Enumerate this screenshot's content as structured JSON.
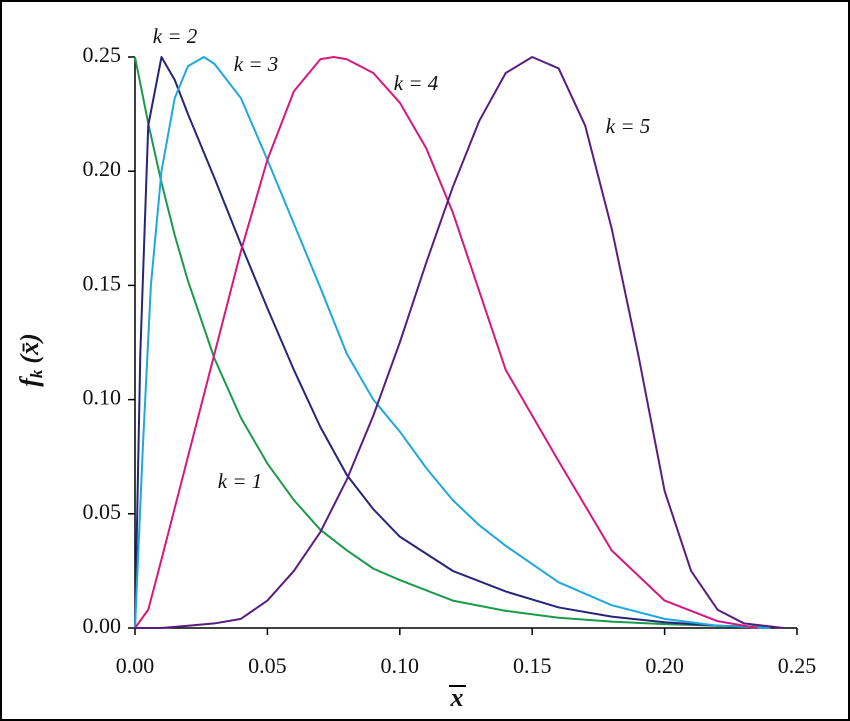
{
  "chart_data": {
    "type": "line",
    "ylabel": [
      "f",
      "k",
      "(x̄)"
    ],
    "xlabel": "x",
    "xlim": [
      0,
      0.25
    ],
    "ylim": [
      0,
      0.25
    ],
    "xticks": [
      {
        "value": 0,
        "label": "0.00"
      },
      {
        "value": 0.05,
        "label": "0.05"
      },
      {
        "value": 0.1,
        "label": "0.10"
      },
      {
        "value": 0.15,
        "label": "0.15"
      },
      {
        "value": 0.2,
        "label": "0.20"
      },
      {
        "value": 0.25,
        "label": "0.25"
      }
    ],
    "yticks": [
      {
        "value": 0,
        "label": "0.00"
      },
      {
        "value": 0.05,
        "label": "0.05"
      },
      {
        "value": 0.1,
        "label": "0.10"
      },
      {
        "value": 0.15,
        "label": "0.15"
      },
      {
        "value": 0.2,
        "label": "0.20"
      },
      {
        "value": 0.25,
        "label": "0.25"
      }
    ],
    "series": [
      {
        "name": "k = 1",
        "color": "#1b9a4a",
        "x": [
          0,
          0.005,
          0.01,
          0.015,
          0.02,
          0.03,
          0.04,
          0.05,
          0.06,
          0.07,
          0.08,
          0.09,
          0.1,
          0.12,
          0.14,
          0.16,
          0.18,
          0.2,
          0.22,
          0.24
        ],
        "values": [
          0.25,
          0.221,
          0.195,
          0.172,
          0.152,
          0.118,
          0.092,
          0.072,
          0.056,
          0.043,
          0.034,
          0.026,
          0.021,
          0.012,
          0.0075,
          0.0045,
          0.0028,
          0.0017,
          0.001,
          0.0005
        ]
      },
      {
        "name": "k = 2",
        "color": "#27257a",
        "x": [
          0,
          0.002,
          0.005,
          0.01,
          0.015,
          0.02,
          0.03,
          0.04,
          0.05,
          0.06,
          0.07,
          0.08,
          0.09,
          0.1,
          0.12,
          0.14,
          0.16,
          0.18,
          0.2,
          0.22,
          0.24
        ],
        "values": [
          0,
          0.12,
          0.22,
          0.25,
          0.24,
          0.225,
          0.197,
          0.168,
          0.14,
          0.113,
          0.088,
          0.067,
          0.052,
          0.04,
          0.025,
          0.016,
          0.009,
          0.005,
          0.0025,
          0.001,
          0
        ]
      },
      {
        "name": "k = 3",
        "color": "#1ea9dc",
        "x": [
          0,
          0.003,
          0.006,
          0.01,
          0.015,
          0.02,
          0.026,
          0.03,
          0.04,
          0.05,
          0.06,
          0.07,
          0.08,
          0.09,
          0.1,
          0.11,
          0.12,
          0.13,
          0.14,
          0.15,
          0.16,
          0.18,
          0.2,
          0.22,
          0.24
        ],
        "values": [
          0,
          0.08,
          0.15,
          0.2,
          0.232,
          0.246,
          0.25,
          0.247,
          0.232,
          0.205,
          0.177,
          0.149,
          0.12,
          0.1,
          0.086,
          0.07,
          0.056,
          0.045,
          0.036,
          0.028,
          0.02,
          0.01,
          0.004,
          0.001,
          0
        ]
      },
      {
        "name": "k = 4",
        "color": "#d6177f",
        "x": [
          0,
          0.005,
          0.01,
          0.02,
          0.03,
          0.04,
          0.05,
          0.06,
          0.07,
          0.075,
          0.08,
          0.09,
          0.1,
          0.11,
          0.12,
          0.14,
          0.16,
          0.18,
          0.2,
          0.22,
          0.235
        ],
        "values": [
          0,
          0.008,
          0.03,
          0.075,
          0.12,
          0.165,
          0.205,
          0.235,
          0.249,
          0.25,
          0.249,
          0.243,
          0.23,
          0.21,
          0.182,
          0.113,
          0.073,
          0.034,
          0.012,
          0.003,
          0
        ]
      },
      {
        "name": "k = 5",
        "color": "#5b1c80",
        "x": [
          0,
          0.01,
          0.02,
          0.03,
          0.04,
          0.05,
          0.06,
          0.07,
          0.08,
          0.09,
          0.1,
          0.11,
          0.12,
          0.13,
          0.14,
          0.15,
          0.16,
          0.17,
          0.18,
          0.19,
          0.2,
          0.21,
          0.22,
          0.23,
          0.245
        ],
        "values": [
          0,
          0,
          0.001,
          0.002,
          0.004,
          0.012,
          0.025,
          0.042,
          0.065,
          0.093,
          0.125,
          0.16,
          0.193,
          0.222,
          0.243,
          0.25,
          0.245,
          0.22,
          0.175,
          0.12,
          0.06,
          0.025,
          0.008,
          0.002,
          0
        ]
      }
    ]
  }
}
